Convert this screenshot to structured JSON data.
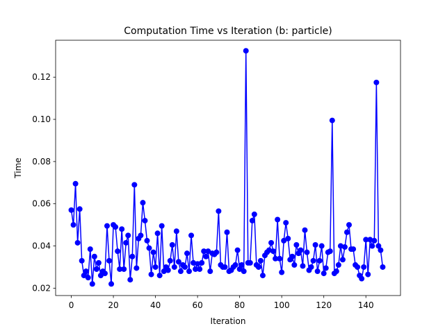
{
  "chart_data": {
    "type": "line",
    "title": "Computation Time vs Iteration (b: particle)",
    "x_label": "Iteration",
    "y_label": "Time",
    "color": "#0000ff",
    "x": [
      0,
      1,
      2,
      3,
      4,
      5,
      6,
      7,
      8,
      9,
      10,
      11,
      12,
      13,
      14,
      15,
      16,
      17,
      18,
      19,
      20,
      21,
      22,
      23,
      24,
      25,
      26,
      27,
      28,
      29,
      30,
      31,
      32,
      33,
      34,
      35,
      36,
      37,
      38,
      39,
      40,
      41,
      42,
      43,
      44,
      45,
      46,
      47,
      48,
      49,
      50,
      51,
      52,
      53,
      54,
      55,
      56,
      57,
      58,
      59,
      60,
      61,
      62,
      63,
      64,
      65,
      66,
      67,
      68,
      69,
      70,
      71,
      72,
      73,
      74,
      75,
      76,
      77,
      78,
      79,
      80,
      81,
      82,
      83,
      84,
      85,
      86,
      87,
      88,
      89,
      90,
      91,
      92,
      93,
      94,
      95,
      96,
      97,
      98,
      99,
      100,
      101,
      102,
      103,
      104,
      105,
      106,
      107,
      108,
      109,
      110,
      111,
      112,
      113,
      114,
      115,
      116,
      117,
      118,
      119,
      120,
      121,
      122,
      123,
      124,
      125,
      126,
      127,
      128,
      129,
      130,
      131,
      132,
      133,
      134,
      135,
      136,
      137,
      138,
      139,
      140,
      141,
      142,
      143,
      144,
      145,
      146,
      147,
      148
    ],
    "values": [
      0.057,
      0.05,
      0.0695,
      0.0415,
      0.0575,
      0.033,
      0.026,
      0.028,
      0.025,
      0.0385,
      0.022,
      0.035,
      0.029,
      0.032,
      0.026,
      0.028,
      0.027,
      0.0495,
      0.033,
      0.022,
      0.05,
      0.049,
      0.0375,
      0.029,
      0.048,
      0.029,
      0.0415,
      0.045,
      0.024,
      0.035,
      0.069,
      0.0295,
      0.0435,
      0.045,
      0.0605,
      0.052,
      0.0425,
      0.039,
      0.0265,
      0.037,
      0.03,
      0.046,
      0.026,
      0.0495,
      0.028,
      0.03,
      0.0285,
      0.033,
      0.0405,
      0.03,
      0.047,
      0.0325,
      0.028,
      0.031,
      0.03,
      0.0365,
      0.028,
      0.045,
      0.032,
      0.029,
      0.0315,
      0.029,
      0.032,
      0.0375,
      0.035,
      0.0375,
      0.028,
      0.0365,
      0.036,
      0.037,
      0.0565,
      0.031,
      0.03,
      0.03,
      0.0465,
      0.028,
      0.0285,
      0.03,
      0.031,
      0.038,
      0.029,
      0.031,
      0.028,
      0.1325,
      0.032,
      0.032,
      0.052,
      0.055,
      0.031,
      0.03,
      0.033,
      0.026,
      0.0355,
      0.037,
      0.038,
      0.0415,
      0.0375,
      0.034,
      0.0525,
      0.034,
      0.0275,
      0.0425,
      0.051,
      0.0435,
      0.0335,
      0.035,
      0.031,
      0.0405,
      0.0365,
      0.038,
      0.0305,
      0.0475,
      0.037,
      0.0285,
      0.03,
      0.033,
      0.0405,
      0.028,
      0.033,
      0.04,
      0.027,
      0.0295,
      0.037,
      0.0375,
      0.0995,
      0.027,
      0.028,
      0.031,
      0.04,
      0.0335,
      0.0395,
      0.0465,
      0.05,
      0.0385,
      0.0385,
      0.031,
      0.03,
      0.026,
      0.0245,
      0.03,
      0.043,
      0.0265,
      0.043,
      0.04,
      0.0425,
      0.1175,
      0.04,
      0.038,
      0.03
    ],
    "xlim": [
      -7.45,
      156.45
    ],
    "xticks": [
      0,
      20,
      40,
      60,
      80,
      100,
      120,
      140
    ],
    "ylim": [
      0.0165,
      0.1375
    ],
    "yticks": [
      0.02,
      0.04,
      0.06,
      0.08,
      {
        "value": 0.1,
        "label": "0.10"
      },
      0.12
    ]
  }
}
